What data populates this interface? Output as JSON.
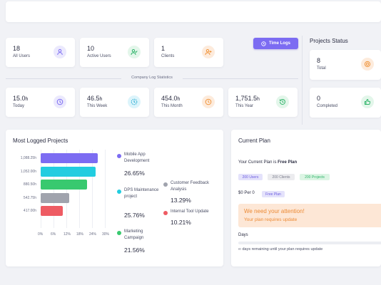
{
  "stats": [
    {
      "value": "18",
      "unit": "",
      "label": "All Users",
      "icon": "user-icon",
      "bg": "#ebe9fd",
      "fg": "#7c6cf2"
    },
    {
      "value": "10",
      "unit": "",
      "label": "Active Users",
      "icon": "user-check-icon",
      "bg": "#e3f6ea",
      "fg": "#2fb46a"
    },
    {
      "value": "1",
      "unit": "",
      "label": "Clients",
      "icon": "user-plus-icon",
      "bg": "#fdebdc",
      "fg": "#f0943a"
    }
  ],
  "time_logs_button": {
    "label": "Time Logs",
    "icon": "clock-icon"
  },
  "company_log": {
    "title": "Company Log Statistics",
    "items": [
      {
        "value": "15.0",
        "unit": "h",
        "label": "Today",
        "icon": "clock-rotate-icon",
        "bg": "#ebe9fd",
        "fg": "#7c6cf2"
      },
      {
        "value": "46.5",
        "unit": "h",
        "label": "This Week",
        "icon": "clock-dashed-icon",
        "bg": "#dcf4fb",
        "fg": "#22a9d1"
      },
      {
        "value": "454.0",
        "unit": "h",
        "label": "This Month",
        "icon": "clock-icon",
        "bg": "#fdebdc",
        "fg": "#f0943a"
      },
      {
        "value": "1,751.5",
        "unit": "h",
        "label": "This Year",
        "icon": "history-icon",
        "bg": "#e3f6ea",
        "fg": "#2fb46a"
      }
    ]
  },
  "projects_status": {
    "title": "Projects Status",
    "items": [
      {
        "value": "8",
        "label": "Total",
        "icon": "target-icon",
        "bg": "#fdebdc",
        "fg": "#f0943a"
      },
      {
        "value": "0",
        "label": "Completed",
        "icon": "thumbs-up-icon",
        "bg": "#e3f6ea",
        "fg": "#2fb46a"
      }
    ]
  },
  "most_logged": {
    "title": "Most Logged Projects",
    "legend": [
      {
        "name": "Mobile App Development",
        "pct": "26.65%",
        "color": "#7c6cf2"
      },
      {
        "name": "DPS Maintenance project",
        "pct": "25.76%",
        "color": "#22cde0"
      },
      {
        "name": "Marketing Campaign",
        "pct": "21.56%",
        "color": "#38c96f"
      },
      {
        "name": "Customer Feedback Analysis",
        "pct": "13.29%",
        "color": "#a0a3ad"
      },
      {
        "name": "Internal Tool Update",
        "pct": "10.21%",
        "color": "#ee5b63"
      }
    ]
  },
  "chart_data": {
    "type": "bar",
    "orientation": "horizontal",
    "title": "Most Logged Projects",
    "categories": [
      "1,088.25h",
      "1,052.00h",
      "880.50h",
      "542.75h",
      "417.00h"
    ],
    "values": [
      26.65,
      25.76,
      21.56,
      13.29,
      10.21
    ],
    "colors": [
      "#7c6cf2",
      "#22cde0",
      "#38c96f",
      "#a0a3ad",
      "#ee5b63"
    ],
    "xticks": [
      "0%",
      "6%",
      "12%",
      "18%",
      "24%",
      "30%"
    ],
    "xlim": [
      0,
      30
    ],
    "grid": true,
    "legend_position": "right"
  },
  "current_plan": {
    "title": "Current Plan",
    "line_prefix": "Your Current Plan is ",
    "plan_name": "Free Plan",
    "badges": [
      {
        "label": "200 Users",
        "bg": "#e4e2fb",
        "fg": "#6b5ce0"
      },
      {
        "label": "200 Clients",
        "bg": "#ececef",
        "fg": "#7a7d8c"
      },
      {
        "label": "200 Projects",
        "bg": "#dcf5e4",
        "fg": "#2fb46a"
      }
    ],
    "price": "$0 Per 0",
    "price_badge": "Free Plan",
    "alert_title": "We need your attention!",
    "alert_text": "Your plan requires update",
    "days_label": "Days",
    "days_progress": 0,
    "days_text": "∞ days remaining until your plan requires update"
  }
}
